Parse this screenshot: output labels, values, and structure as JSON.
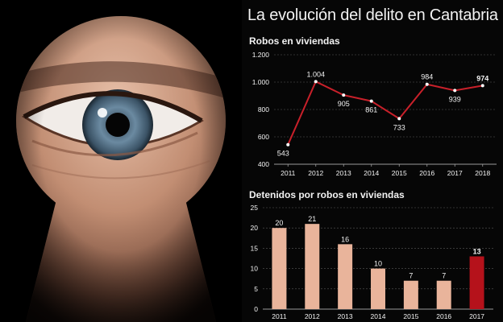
{
  "header": {
    "title": "La evolución del delito en Cantabria"
  },
  "photo": {
    "subject": "keyhole-eye"
  },
  "colors": {
    "line": "#c8202a",
    "bar": "#e9b49b",
    "bar_highlight": "#b5121b",
    "text": "#f2f2f2",
    "grid": "#5a5a5a"
  },
  "chart_data": [
    {
      "type": "line",
      "title": "Robos en viviendas",
      "x": [
        "2011",
        "2012",
        "2013",
        "2014",
        "2015",
        "2016",
        "2017",
        "2018"
      ],
      "series": [
        {
          "values": [
            543,
            1004,
            905,
            861,
            733,
            984,
            939,
            974
          ]
        }
      ],
      "data_labels": [
        "543",
        "1.004",
        "905",
        "861",
        "733",
        "984",
        "939",
        "974"
      ],
      "y_ticks": [
        "400",
        "600",
        "800",
        "1.000",
        "1.200"
      ],
      "ylim": [
        400,
        1200
      ],
      "grid": true,
      "highlight_last_label": true
    },
    {
      "type": "bar",
      "title": "Detenidos por robos en viviendas",
      "categories": [
        "2011",
        "2012",
        "2013",
        "2014",
        "2015",
        "2016",
        "2017"
      ],
      "values": [
        20,
        21,
        16,
        10,
        7,
        7,
        13
      ],
      "y_ticks": [
        "0",
        "5",
        "10",
        "15",
        "20",
        "25"
      ],
      "ylim": [
        0,
        25
      ],
      "grid": true,
      "highlight_last": true
    }
  ]
}
